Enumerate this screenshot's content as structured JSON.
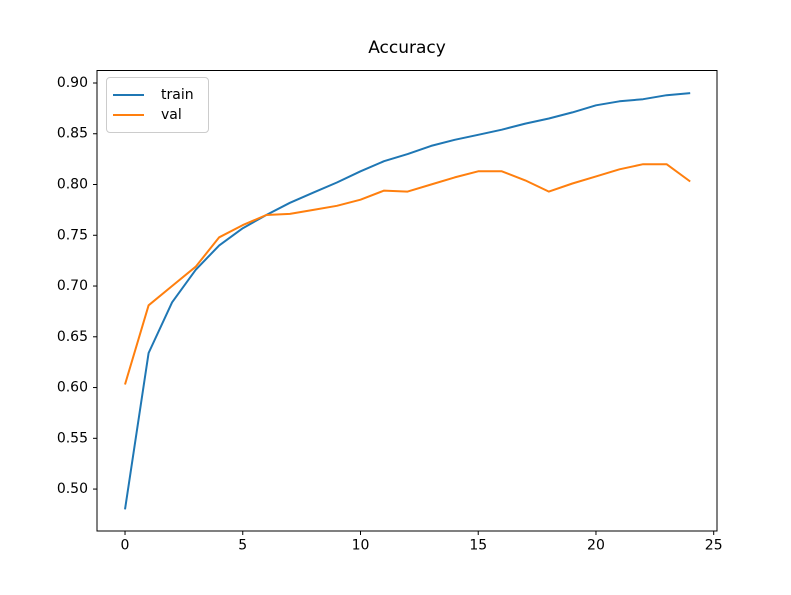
{
  "figure": {
    "background": "#ffffff",
    "axis_color": "#000000",
    "text_color": "#000000",
    "legend_border_color": "#cccccc"
  },
  "chart_data": {
    "type": "line",
    "title": "Accuracy",
    "xlabel": "",
    "ylabel": "",
    "grid": false,
    "legend_position": "upper-left",
    "xlim": [
      -1.19,
      25.14
    ],
    "ylim": [
      0.4587,
      0.9123
    ],
    "x_ticks": [
      {
        "value": 0,
        "label": "0"
      },
      {
        "value": 5,
        "label": "5"
      },
      {
        "value": 10,
        "label": "10"
      },
      {
        "value": 15,
        "label": "15"
      },
      {
        "value": 20,
        "label": "20"
      },
      {
        "value": 25,
        "label": "25"
      }
    ],
    "y_ticks": [
      {
        "value": 0.5,
        "label": "0.50"
      },
      {
        "value": 0.55,
        "label": "0.55"
      },
      {
        "value": 0.6,
        "label": "0.60"
      },
      {
        "value": 0.65,
        "label": "0.65"
      },
      {
        "value": 0.7,
        "label": "0.70"
      },
      {
        "value": 0.75,
        "label": "0.75"
      },
      {
        "value": 0.8,
        "label": "0.80"
      },
      {
        "value": 0.85,
        "label": "0.85"
      },
      {
        "value": 0.9,
        "label": "0.90"
      }
    ],
    "x": [
      0,
      1,
      2,
      3,
      4,
      5,
      6,
      7,
      8,
      9,
      10,
      11,
      12,
      13,
      14,
      15,
      16,
      17,
      18,
      19,
      20,
      21,
      22,
      23,
      24
    ],
    "series": [
      {
        "name": "train",
        "color": "#1f77b4",
        "values": [
          0.48,
          0.634,
          0.684,
          0.716,
          0.74,
          0.757,
          0.77,
          0.782,
          0.792,
          0.802,
          0.813,
          0.823,
          0.83,
          0.838,
          0.844,
          0.849,
          0.854,
          0.86,
          0.865,
          0.871,
          0.878,
          0.882,
          0.884,
          0.888,
          0.89
        ]
      },
      {
        "name": "val",
        "color": "#ff7f0e",
        "values": [
          0.603,
          0.681,
          0.7,
          0.719,
          0.748,
          0.76,
          0.77,
          0.771,
          0.775,
          0.779,
          0.785,
          0.794,
          0.793,
          0.8,
          0.807,
          0.813,
          0.813,
          0.804,
          0.793,
          0.801,
          0.808,
          0.815,
          0.82,
          0.82,
          0.803
        ]
      }
    ]
  }
}
